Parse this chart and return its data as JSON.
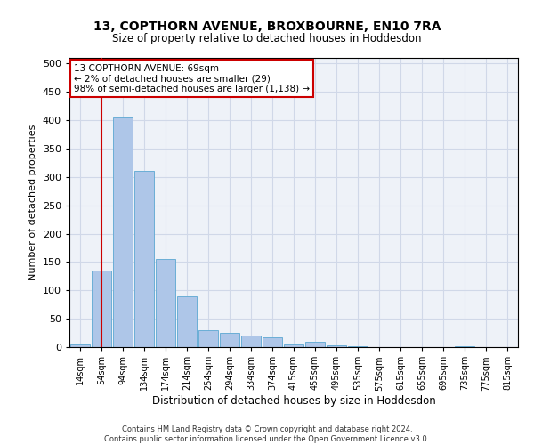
{
  "title": "13, COPTHORN AVENUE, BROXBOURNE, EN10 7RA",
  "subtitle": "Size of property relative to detached houses in Hoddesdon",
  "xlabel": "Distribution of detached houses by size in Hoddesdon",
  "ylabel": "Number of detached properties",
  "bar_labels": [
    "14sqm",
    "54sqm",
    "94sqm",
    "134sqm",
    "174sqm",
    "214sqm",
    "254sqm",
    "294sqm",
    "334sqm",
    "374sqm",
    "415sqm",
    "455sqm",
    "495sqm",
    "535sqm",
    "575sqm",
    "615sqm",
    "655sqm",
    "695sqm",
    "735sqm",
    "775sqm",
    "815sqm"
  ],
  "bar_values": [
    5,
    135,
    405,
    310,
    155,
    90,
    30,
    25,
    20,
    18,
    5,
    10,
    3,
    1,
    0,
    0,
    0,
    0,
    1,
    0,
    0
  ],
  "bar_color": "#aec6e8",
  "bar_edge_color": "#6aaed6",
  "grid_color": "#d0d8e8",
  "background_color": "#eef2f8",
  "vline_x": 1,
  "vline_color": "#cc0000",
  "ylim": [
    0,
    510
  ],
  "yticks": [
    0,
    50,
    100,
    150,
    200,
    250,
    300,
    350,
    400,
    450,
    500
  ],
  "annotation_text": "13 COPTHORN AVENUE: 69sqm\n← 2% of detached houses are smaller (29)\n98% of semi-detached houses are larger (1,138) →",
  "annotation_box_color": "#ffffff",
  "annotation_border_color": "#cc0000",
  "footer_line1": "Contains HM Land Registry data © Crown copyright and database right 2024.",
  "footer_line2": "Contains public sector information licensed under the Open Government Licence v3.0."
}
